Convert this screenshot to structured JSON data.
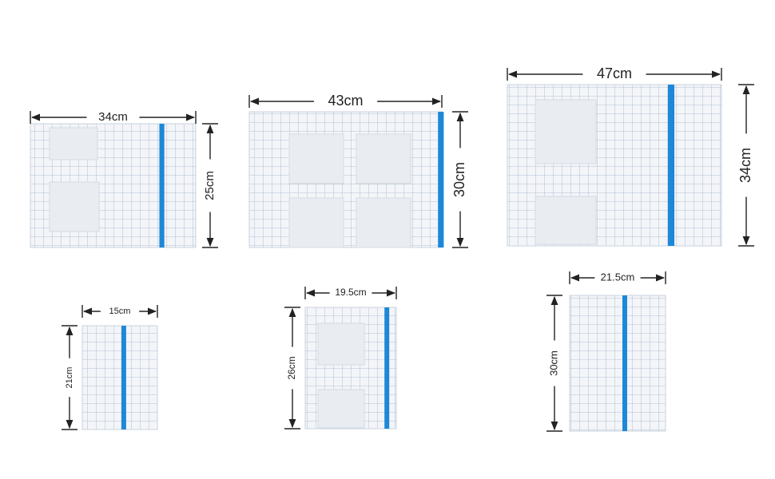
{
  "sheets": [
    {
      "width": "34cm",
      "height": "25cm"
    },
    {
      "width": "43cm",
      "height": "30cm"
    },
    {
      "width": "47cm",
      "height": "34cm"
    },
    {
      "width": "15cm",
      "height": "21cm"
    },
    {
      "width": "19.5cm",
      "height": "26cm"
    },
    {
      "width": "21.5cm",
      "height": "30cm"
    }
  ]
}
